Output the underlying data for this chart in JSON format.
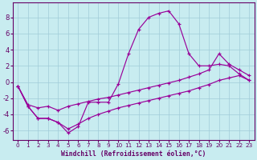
{
  "xlabel": "Windchill (Refroidissement éolien,°C)",
  "bg_color": "#c8ecf0",
  "grid_color": "#a0ccd8",
  "line_color": "#990099",
  "xlim": [
    -0.5,
    23.5
  ],
  "ylim": [
    -7.2,
    9.8
  ],
  "yticks": [
    -6,
    -4,
    -2,
    0,
    2,
    4,
    6,
    8
  ],
  "xticks": [
    0,
    1,
    2,
    3,
    4,
    5,
    6,
    7,
    8,
    9,
    10,
    11,
    12,
    13,
    14,
    15,
    16,
    17,
    18,
    19,
    20,
    21,
    22,
    23
  ],
  "main_x": [
    0,
    1,
    2,
    3,
    4,
    5,
    6,
    7,
    8,
    9,
    10,
    11,
    12,
    13,
    14,
    15,
    16,
    17,
    18,
    19,
    20,
    21,
    22,
    23
  ],
  "main_y": [
    -0.5,
    -3.0,
    -4.5,
    -4.5,
    -5.0,
    -6.3,
    -5.5,
    -2.5,
    -2.5,
    -2.5,
    -0.2,
    3.5,
    6.5,
    8.0,
    8.5,
    8.8,
    7.2,
    3.5,
    2.0,
    2.0,
    2.2,
    2.0,
    1.0,
    0.2
  ],
  "upper_x": [
    0,
    1,
    2,
    3,
    4,
    5,
    6,
    7,
    8,
    9,
    10,
    11,
    12,
    13,
    14,
    15,
    16,
    17,
    18,
    19,
    20,
    21,
    22,
    23
  ],
  "upper_y": [
    -0.5,
    -2.8,
    -3.2,
    -3.0,
    -3.5,
    -3.0,
    -2.7,
    -2.4,
    -2.1,
    -1.9,
    -1.6,
    -1.3,
    -1.0,
    -0.7,
    -0.4,
    -0.1,
    0.2,
    0.6,
    1.0,
    1.5,
    3.5,
    2.2,
    1.5,
    0.8
  ],
  "lower_x": [
    0,
    1,
    2,
    3,
    4,
    5,
    6,
    7,
    8,
    9,
    10,
    11,
    12,
    13,
    14,
    15,
    16,
    17,
    18,
    19,
    20,
    21,
    22,
    23
  ],
  "lower_y": [
    -0.5,
    -3.0,
    -4.5,
    -4.5,
    -5.0,
    -5.8,
    -5.2,
    -4.5,
    -4.0,
    -3.6,
    -3.2,
    -2.9,
    -2.6,
    -2.3,
    -2.0,
    -1.7,
    -1.4,
    -1.1,
    -0.7,
    -0.3,
    0.2,
    0.5,
    0.8,
    0.2
  ]
}
